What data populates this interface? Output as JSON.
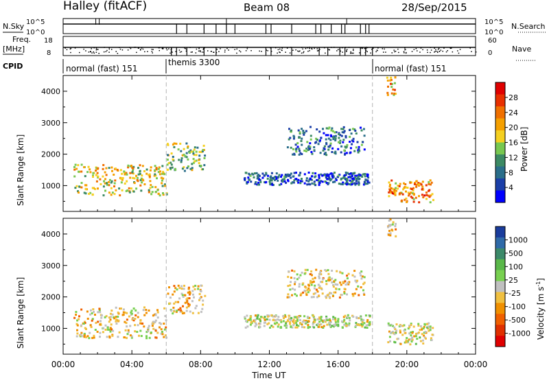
{
  "header": {
    "title": "Halley (fitACF)",
    "beam": "Beam 08",
    "date": "28/Sep/2015"
  },
  "colors": {
    "power_scale": [
      "#0000ff",
      "#1b3fa8",
      "#2a6e8a",
      "#3c8a64",
      "#78c850",
      "#f5d020",
      "#f5a000",
      "#f07000",
      "#e83000",
      "#e00000"
    ],
    "velocity_scale": [
      "#1a3c9c",
      "#2f6aa8",
      "#3c8a6a",
      "#5ab84a",
      "#78d050",
      "#c0c0c0",
      "#f0c040",
      "#f09000",
      "#f06000",
      "#e03000",
      "#e00000"
    ],
    "dashed_marker": "#b4b4b4"
  },
  "info_panels": {
    "nsky_label": "N.Sky",
    "nsearch_label": "N.Search",
    "freq_label": "Freq.",
    "freq_unit": "[MHz]",
    "cpid_label": "CPID",
    "nave_label": "Nave",
    "noise_left_ticks": [
      "10^5",
      "10^0"
    ],
    "noise_right_ticks": [
      "10^5",
      "10^0"
    ],
    "freq_left_ticks": [
      "18",
      "8"
    ],
    "nave_right_ticks": [
      "60",
      "0"
    ]
  },
  "cpid_segments": [
    {
      "label": "normal (fast) 151",
      "start_hour": 0,
      "end_hour": 6
    },
    {
      "label": "themis 3300",
      "start_hour": 6,
      "end_hour": 18
    },
    {
      "label": "normal (fast) 151",
      "start_hour": 18,
      "end_hour": 24
    }
  ],
  "x_axis": {
    "title": "Time UT",
    "ticks": [
      "00:00",
      "04:00",
      "08:00",
      "12:00",
      "16:00",
      "20:00",
      "00:00"
    ]
  },
  "y_axis": {
    "title": "Slant Range [km]",
    "ticks": [
      "1000",
      "2000",
      "3000",
      "4000"
    ]
  },
  "power_colorbar": {
    "title": "Power [dB]",
    "ticks": [
      "4",
      "8",
      "12",
      "16",
      "20",
      "24",
      "28"
    ]
  },
  "velocity_colorbar": {
    "title": "Velocity [m s",
    "superscript": "-1",
    "title_end": "]",
    "ticks": [
      "1000",
      "500",
      "100",
      "25",
      "-25",
      "-100",
      "-500",
      "-1000"
    ]
  },
  "chart_data": {
    "type": "heatmap",
    "title": "Halley (fitACF) Beam 08 28/Sep/2015",
    "xlabel": "Time UT",
    "ylabel": "Slant Range [km]",
    "xlim_hours": [
      0,
      24
    ],
    "ylim_km": [
      180,
      4500
    ],
    "dashed_markers_hours": [
      6,
      18
    ],
    "panels": [
      {
        "name": "Power [dB]",
        "colorbar_range": [
          0,
          32
        ],
        "echo_regions": [
          {
            "t_start": 0.6,
            "t_end": 6.0,
            "range_start_km": 720,
            "range_end_km": 1700,
            "typical_value": 18
          },
          {
            "t_start": 6.0,
            "t_end": 8.2,
            "range_start_km": 1500,
            "range_end_km": 2400,
            "typical_value": 14
          },
          {
            "t_start": 10.5,
            "t_end": 17.8,
            "range_start_km": 1050,
            "range_end_km": 1450,
            "typical_value": 6
          },
          {
            "t_start": 13.0,
            "t_end": 17.5,
            "range_start_km": 2000,
            "range_end_km": 2900,
            "typical_value": 8
          },
          {
            "t_start": 18.8,
            "t_end": 21.5,
            "range_start_km": 500,
            "range_end_km": 1200,
            "typical_value": 22
          },
          {
            "t_start": 18.8,
            "t_end": 19.3,
            "range_start_km": 3900,
            "range_end_km": 4500,
            "typical_value": 20
          }
        ]
      },
      {
        "name": "Velocity [m s-1]",
        "colorbar_range": [
          -1000,
          1000
        ],
        "echo_regions": [
          {
            "t_start": 0.6,
            "t_end": 6.0,
            "range_start_km": 720,
            "range_end_km": 1700,
            "typical_value": -150
          },
          {
            "t_start": 6.0,
            "t_end": 8.2,
            "range_start_km": 1500,
            "range_end_km": 2400,
            "typical_value": -200
          },
          {
            "t_start": 10.5,
            "t_end": 17.8,
            "range_start_km": 1050,
            "range_end_km": 1450,
            "typical_value": 0
          },
          {
            "t_start": 13.0,
            "t_end": 17.5,
            "range_start_km": 2000,
            "range_end_km": 2900,
            "typical_value": -150
          },
          {
            "t_start": 18.8,
            "t_end": 21.5,
            "range_start_km": 500,
            "range_end_km": 1200,
            "typical_value": -40
          },
          {
            "t_start": 18.8,
            "t_end": 19.3,
            "range_start_km": 3900,
            "range_end_km": 4500,
            "typical_value": -200
          }
        ]
      }
    ]
  }
}
